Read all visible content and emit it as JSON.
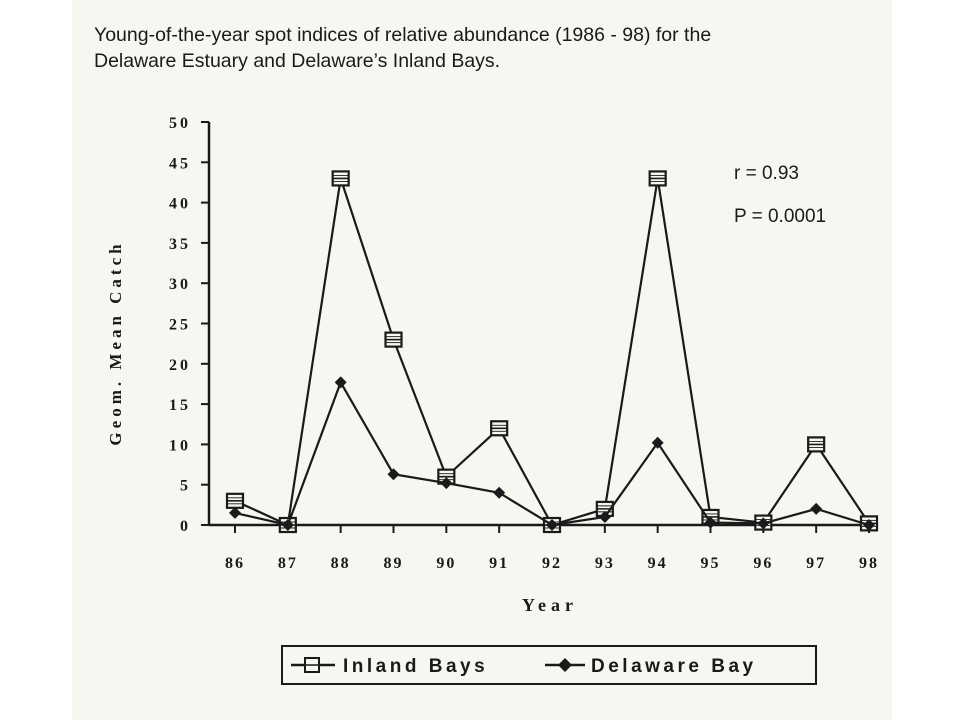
{
  "header": {
    "title_line1": "Young-of-the-year spot indices of relative abundance (1986 - 98) for the",
    "title_line2": "Delaware Estuary and Delaware’s Inland Bays."
  },
  "stats": {
    "r": "r = 0.93",
    "p": "P = 0.0001"
  },
  "legend": {
    "items": [
      {
        "label": "Inland Bays",
        "marker": "square-box"
      },
      {
        "label": "Delaware Bay",
        "marker": "diamond"
      }
    ]
  },
  "chart_data": {
    "type": "line",
    "xlabel": "Year",
    "ylabel": "Geom. Mean Catch",
    "ylim": [
      0,
      50
    ],
    "yticks": [
      "0",
      "5",
      "10",
      "15",
      "20",
      "25",
      "30",
      "35",
      "40",
      "45",
      "50"
    ],
    "categories": [
      "86",
      "87",
      "88",
      "89",
      "90",
      "91",
      "92",
      "93",
      "94",
      "95",
      "96",
      "97",
      "98"
    ],
    "series": [
      {
        "name": "Inland Bays",
        "marker": "square-box",
        "values": [
          3,
          0,
          43,
          23,
          6,
          12,
          0,
          2,
          43,
          1,
          0.3,
          10,
          0.2
        ]
      },
      {
        "name": "Delaware Bay",
        "marker": "diamond",
        "values": [
          1.5,
          0,
          17.7,
          6.3,
          5.2,
          4,
          0,
          1,
          10.2,
          0.3,
          0.2,
          2,
          0
        ]
      }
    ],
    "grid": false,
    "legend_position": "bottom",
    "colors": {
      "line": "#1a1a1a",
      "background": "#f7f6f1"
    }
  }
}
